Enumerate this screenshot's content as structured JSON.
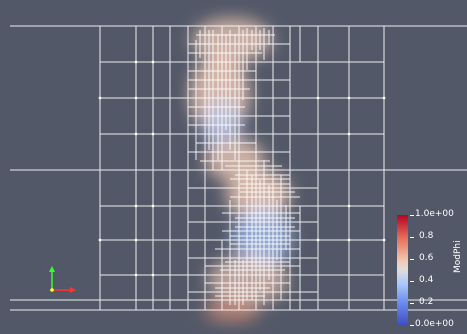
{
  "scalar_bar": {
    "title": "ModPhi",
    "labels": [
      "1.0e+00",
      "0.8",
      "0.6",
      "0.4",
      "0.2",
      "0.0e+00"
    ],
    "colormap": [
      "#b40426",
      "#dddcdc",
      "#3b4cc0"
    ]
  },
  "axes_glyph": {
    "x_color": "#ff3030",
    "y_color": "#30ff30",
    "z_color": "#ffff30"
  },
  "background_color": "#535868",
  "mesh_color": "#ffffff",
  "field_colors": [
    "#f2cbb7",
    "#aac7fd"
  ]
}
